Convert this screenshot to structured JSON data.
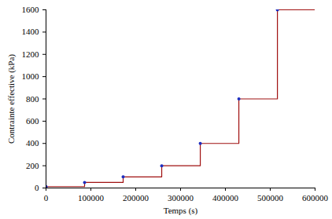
{
  "chart_data": {
    "type": "line",
    "xlabel": "Temps (s)",
    "ylabel": "Contrainte effective (kPa)",
    "xlim": [
      0,
      600000
    ],
    "xticks": [
      0,
      100000,
      200000,
      300000,
      400000,
      500000,
      600000
    ],
    "ylim": [
      0,
      1600
    ],
    "yticks": [
      0,
      200,
      400,
      600,
      800,
      1000,
      1200,
      1400,
      1600
    ],
    "grid": false,
    "series": [
      {
        "type": "line",
        "line_style": "step",
        "color": "#a01010",
        "x": [
          0,
          86000,
          172000,
          258000,
          344000,
          430000,
          516000,
          600000
        ],
        "values": [
          12.5,
          50,
          100,
          200,
          400,
          800,
          1600,
          1600
        ]
      },
      {
        "type": "scatter",
        "marker": "circle",
        "color": "#1f2fbf",
        "x": [
          0,
          86000,
          172000,
          258000,
          344000,
          430000,
          516000
        ],
        "values": [
          12.5,
          50,
          100,
          200,
          400,
          800,
          1600
        ]
      }
    ]
  }
}
